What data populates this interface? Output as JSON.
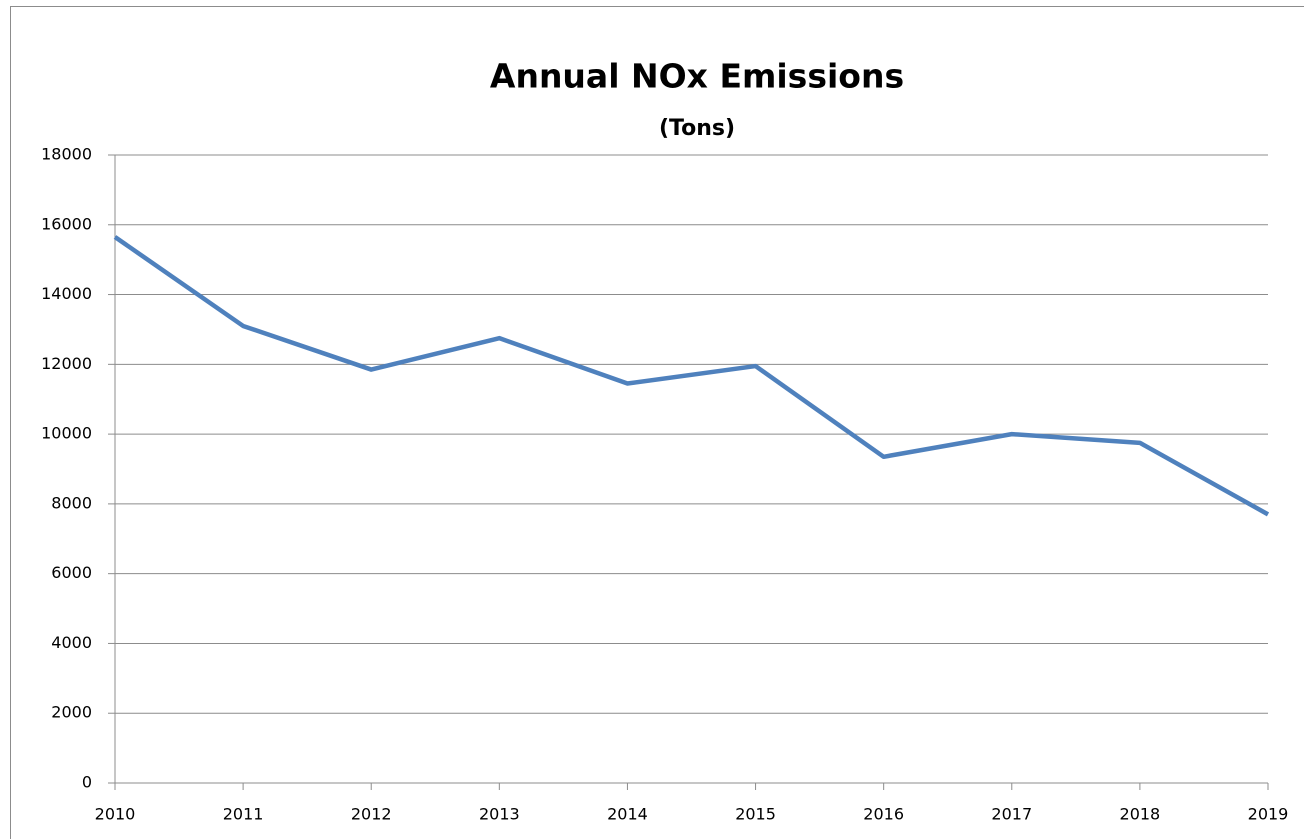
{
  "chart_data": {
    "type": "line",
    "title": "Annual NOx Emissions",
    "subtitle": "(Tons)",
    "categories": [
      "2010",
      "2011",
      "2012",
      "2013",
      "2014",
      "2015",
      "2016",
      "2017",
      "2018",
      "2019"
    ],
    "series": [
      {
        "name": "NOx",
        "color": "#4f81bd",
        "values": [
          15650,
          13100,
          11850,
          12750,
          11450,
          11950,
          9350,
          10000,
          9750,
          7700
        ]
      }
    ],
    "ylim": [
      0,
      18000
    ],
    "yticks": [
      0,
      2000,
      4000,
      6000,
      8000,
      10000,
      12000,
      14000,
      16000,
      18000
    ],
    "grid": true
  }
}
